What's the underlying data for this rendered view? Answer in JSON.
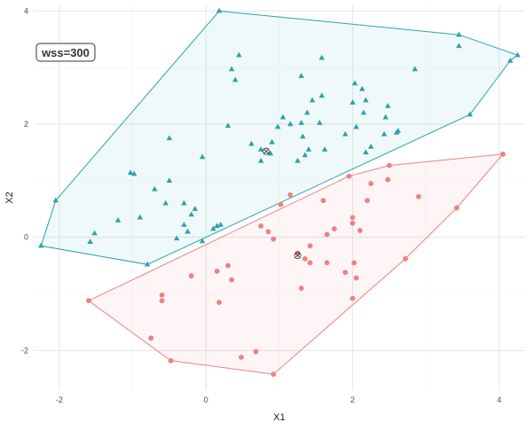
{
  "chart_data": {
    "type": "scatter",
    "title": "",
    "xlabel": "X1",
    "ylabel": "X2",
    "xlim": [
      -2.35,
      4.35
    ],
    "ylim": [
      -2.7,
      4.1
    ],
    "x_ticks": [
      -2,
      0,
      2,
      4
    ],
    "y_ticks": [
      -2,
      0,
      2,
      4
    ],
    "x_tick_labels": [
      "-2",
      "0",
      "2",
      "4"
    ],
    "y_tick_labels": [
      "-2",
      "0",
      "2",
      "4"
    ],
    "grid": true,
    "annotation": "wss=300",
    "series": [
      {
        "color": "#2ba3a8",
        "marker": "triangle",
        "centroid": [
          0.82,
          1.52
        ],
        "points": [
          [
            0.18,
            4.0
          ],
          [
            3.45,
            3.58
          ],
          [
            4.25,
            3.22
          ],
          [
            4.15,
            3.12
          ],
          [
            3.45,
            3.38
          ],
          [
            2.85,
            2.97
          ],
          [
            0.45,
            3.22
          ],
          [
            0.35,
            2.97
          ],
          [
            0.4,
            2.78
          ],
          [
            1.58,
            3.17
          ],
          [
            1.3,
            2.85
          ],
          [
            2.03,
            2.72
          ],
          [
            2.13,
            2.62
          ],
          [
            2.18,
            2.42
          ],
          [
            2.0,
            2.38
          ],
          [
            1.58,
            2.5
          ],
          [
            1.45,
            2.42
          ],
          [
            1.38,
            2.2
          ],
          [
            2.48,
            2.32
          ],
          [
            2.15,
            2.2
          ],
          [
            2.45,
            2.12
          ],
          [
            1.05,
            2.12
          ],
          [
            1.3,
            2.02
          ],
          [
            1.15,
            2.0
          ],
          [
            1.55,
            2.02
          ],
          [
            0.98,
            1.95
          ],
          [
            0.3,
            1.97
          ],
          [
            2.05,
            1.95
          ],
          [
            2.43,
            1.82
          ],
          [
            1.9,
            1.82
          ],
          [
            2.6,
            1.85
          ],
          [
            2.62,
            1.88
          ],
          [
            1.32,
            1.78
          ],
          [
            0.9,
            1.68
          ],
          [
            0.62,
            1.65
          ],
          [
            0.75,
            1.55
          ],
          [
            2.25,
            1.6
          ],
          [
            1.62,
            1.55
          ],
          [
            1.4,
            1.55
          ],
          [
            2.18,
            1.5
          ],
          [
            0.88,
            1.48
          ],
          [
            1.35,
            1.45
          ],
          [
            0.75,
            1.35
          ],
          [
            1.25,
            1.35
          ],
          [
            -0.5,
            1.75
          ],
          [
            -0.05,
            1.42
          ],
          [
            -1.03,
            1.14
          ],
          [
            -0.98,
            1.12
          ],
          [
            -0.5,
            1.0
          ],
          [
            -0.7,
            0.85
          ],
          [
            -0.55,
            0.6
          ],
          [
            -1.2,
            0.3
          ],
          [
            -0.3,
            0.6
          ],
          [
            -0.15,
            0.5
          ],
          [
            -0.2,
            0.4
          ],
          [
            -0.3,
            0.22
          ],
          [
            -0.9,
            0.35
          ],
          [
            -0.25,
            0.1
          ],
          [
            0.15,
            0.2
          ],
          [
            0.2,
            0.22
          ],
          [
            0.1,
            0.15
          ],
          [
            -1.52,
            0.07
          ],
          [
            -1.58,
            -0.08
          ],
          [
            -2.05,
            0.65
          ],
          [
            -2.25,
            -0.15
          ],
          [
            -0.8,
            -0.48
          ],
          [
            -0.4,
            -0.02
          ],
          [
            -0.05,
            -0.07
          ],
          [
            3.6,
            2.17
          ]
        ],
        "hull": [
          [
            0.18,
            4.0
          ],
          [
            3.45,
            3.58
          ],
          [
            4.25,
            3.22
          ],
          [
            4.15,
            3.12
          ],
          [
            3.6,
            2.17
          ],
          [
            -0.8,
            -0.48
          ],
          [
            -2.25,
            -0.15
          ],
          [
            -2.05,
            0.65
          ]
        ]
      },
      {
        "color": "#f08080",
        "marker": "circle",
        "centroid": [
          1.25,
          -0.32
        ],
        "points": [
          [
            4.05,
            1.47
          ],
          [
            2.5,
            1.27
          ],
          [
            2.48,
            1.02
          ],
          [
            1.95,
            1.08
          ],
          [
            2.25,
            0.95
          ],
          [
            2.9,
            0.72
          ],
          [
            1.15,
            0.75
          ],
          [
            2.2,
            0.65
          ],
          [
            1.6,
            0.65
          ],
          [
            1.02,
            0.58
          ],
          [
            3.42,
            0.52
          ],
          [
            2.0,
            0.35
          ],
          [
            2.0,
            0.25
          ],
          [
            0.75,
            0.2
          ],
          [
            0.85,
            0.1
          ],
          [
            1.75,
            0.15
          ],
          [
            2.1,
            0.12
          ],
          [
            1.65,
            0.05
          ],
          [
            0.92,
            -0.03
          ],
          [
            1.42,
            -0.15
          ],
          [
            1.25,
            -0.28
          ],
          [
            1.42,
            -0.45
          ],
          [
            1.65,
            -0.45
          ],
          [
            2.02,
            -0.45
          ],
          [
            1.35,
            -0.38
          ],
          [
            2.72,
            -0.38
          ],
          [
            0.3,
            -0.5
          ],
          [
            0.15,
            -0.6
          ],
          [
            1.9,
            -0.62
          ],
          [
            2.05,
            -0.72
          ],
          [
            -0.2,
            -0.68
          ],
          [
            0.35,
            -0.75
          ],
          [
            1.3,
            -0.9
          ],
          [
            -0.6,
            -1.02
          ],
          [
            -0.6,
            -1.12
          ],
          [
            0.18,
            -1.15
          ],
          [
            2.0,
            -1.08
          ],
          [
            -1.6,
            -1.12
          ],
          [
            -0.75,
            -1.78
          ],
          [
            -0.48,
            -2.18
          ],
          [
            0.48,
            -2.12
          ],
          [
            0.68,
            -2.02
          ],
          [
            0.92,
            -2.42
          ]
        ],
        "hull": [
          [
            4.05,
            1.47
          ],
          [
            3.42,
            0.52
          ],
          [
            2.72,
            -0.38
          ],
          [
            0.92,
            -2.42
          ],
          [
            -0.48,
            -2.18
          ],
          [
            -1.6,
            -1.12
          ],
          [
            1.95,
            1.08
          ],
          [
            2.5,
            1.27
          ]
        ]
      }
    ]
  }
}
